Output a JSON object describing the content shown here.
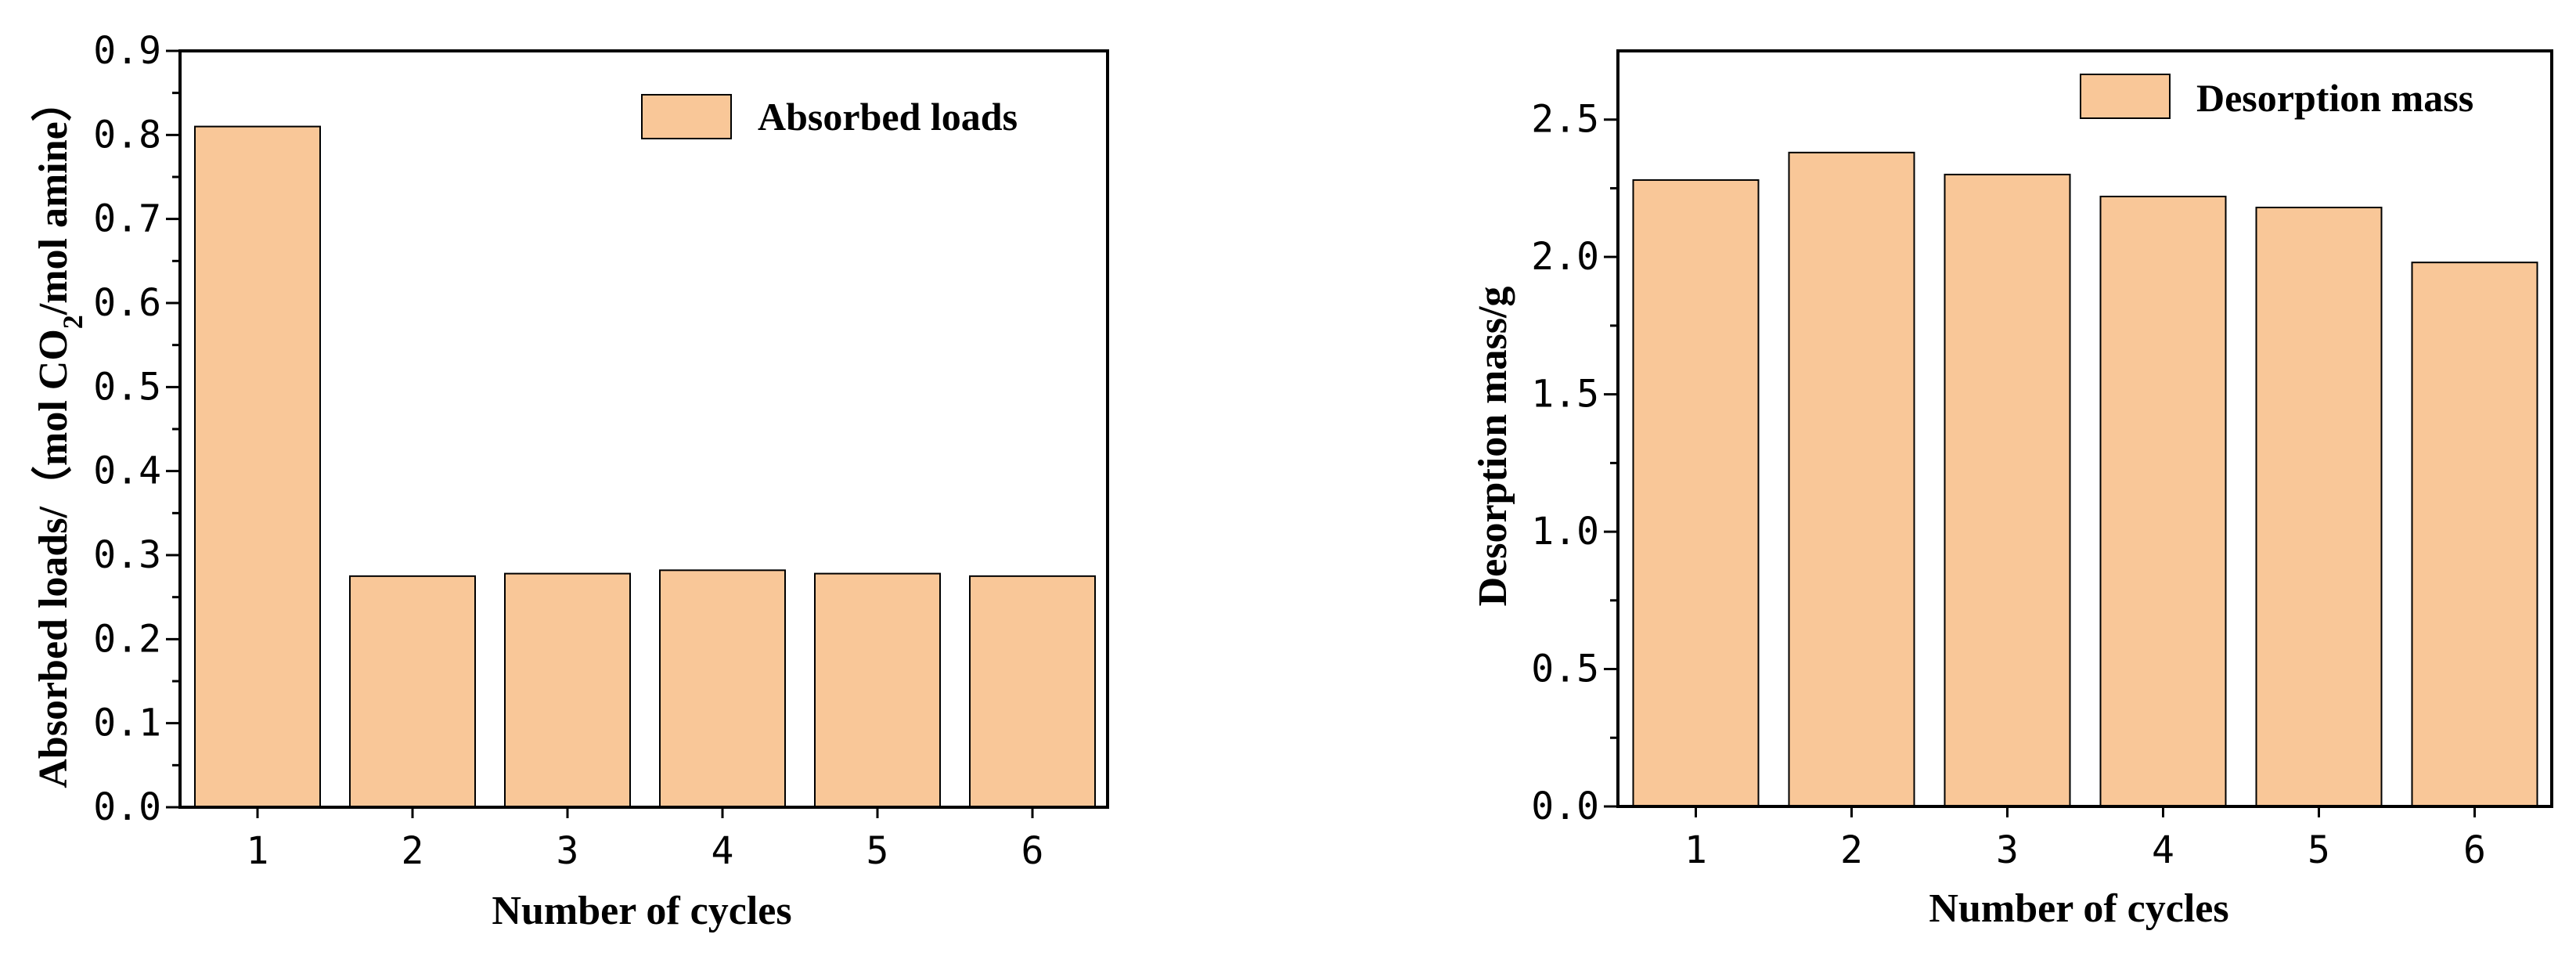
{
  "colors": {
    "bar_fill": "#F9C798",
    "bar_stroke": "#000000",
    "axis": "#000000",
    "background": "#ffffff"
  },
  "chart_data": [
    {
      "type": "bar",
      "categories": [
        "1",
        "2",
        "3",
        "4",
        "5",
        "6"
      ],
      "series": [
        {
          "name": "Absorbed loads",
          "values": [
            0.81,
            0.275,
            0.278,
            0.282,
            0.278,
            0.275
          ]
        }
      ],
      "xlabel": "Number of cycles",
      "ylabel_main": "Absorbed loads/（mol CO",
      "ylabel_sub": "2",
      "ylabel_end": "/mol amine）",
      "ylim": [
        0,
        0.9
      ],
      "yticks": [
        "0.0",
        "0.1",
        "0.2",
        "0.3",
        "0.4",
        "0.5",
        "0.6",
        "0.7",
        "0.8",
        "0.9"
      ],
      "legend": "top-right",
      "grid": false
    },
    {
      "type": "bar",
      "categories": [
        "1",
        "2",
        "3",
        "4",
        "5",
        "6"
      ],
      "series": [
        {
          "name": "Desorption mass",
          "values": [
            2.28,
            2.38,
            2.3,
            2.22,
            2.18,
            1.98
          ]
        }
      ],
      "xlabel": "Number of cycles",
      "ylabel_main": "Desorption mass/g",
      "ylabel_sub": "",
      "ylabel_end": "",
      "ylim": [
        0,
        2.75
      ],
      "yticks": [
        "0.0",
        "0.5",
        "1.0",
        "1.5",
        "2.0",
        "2.5"
      ],
      "legend": "top-right",
      "grid": false
    }
  ]
}
